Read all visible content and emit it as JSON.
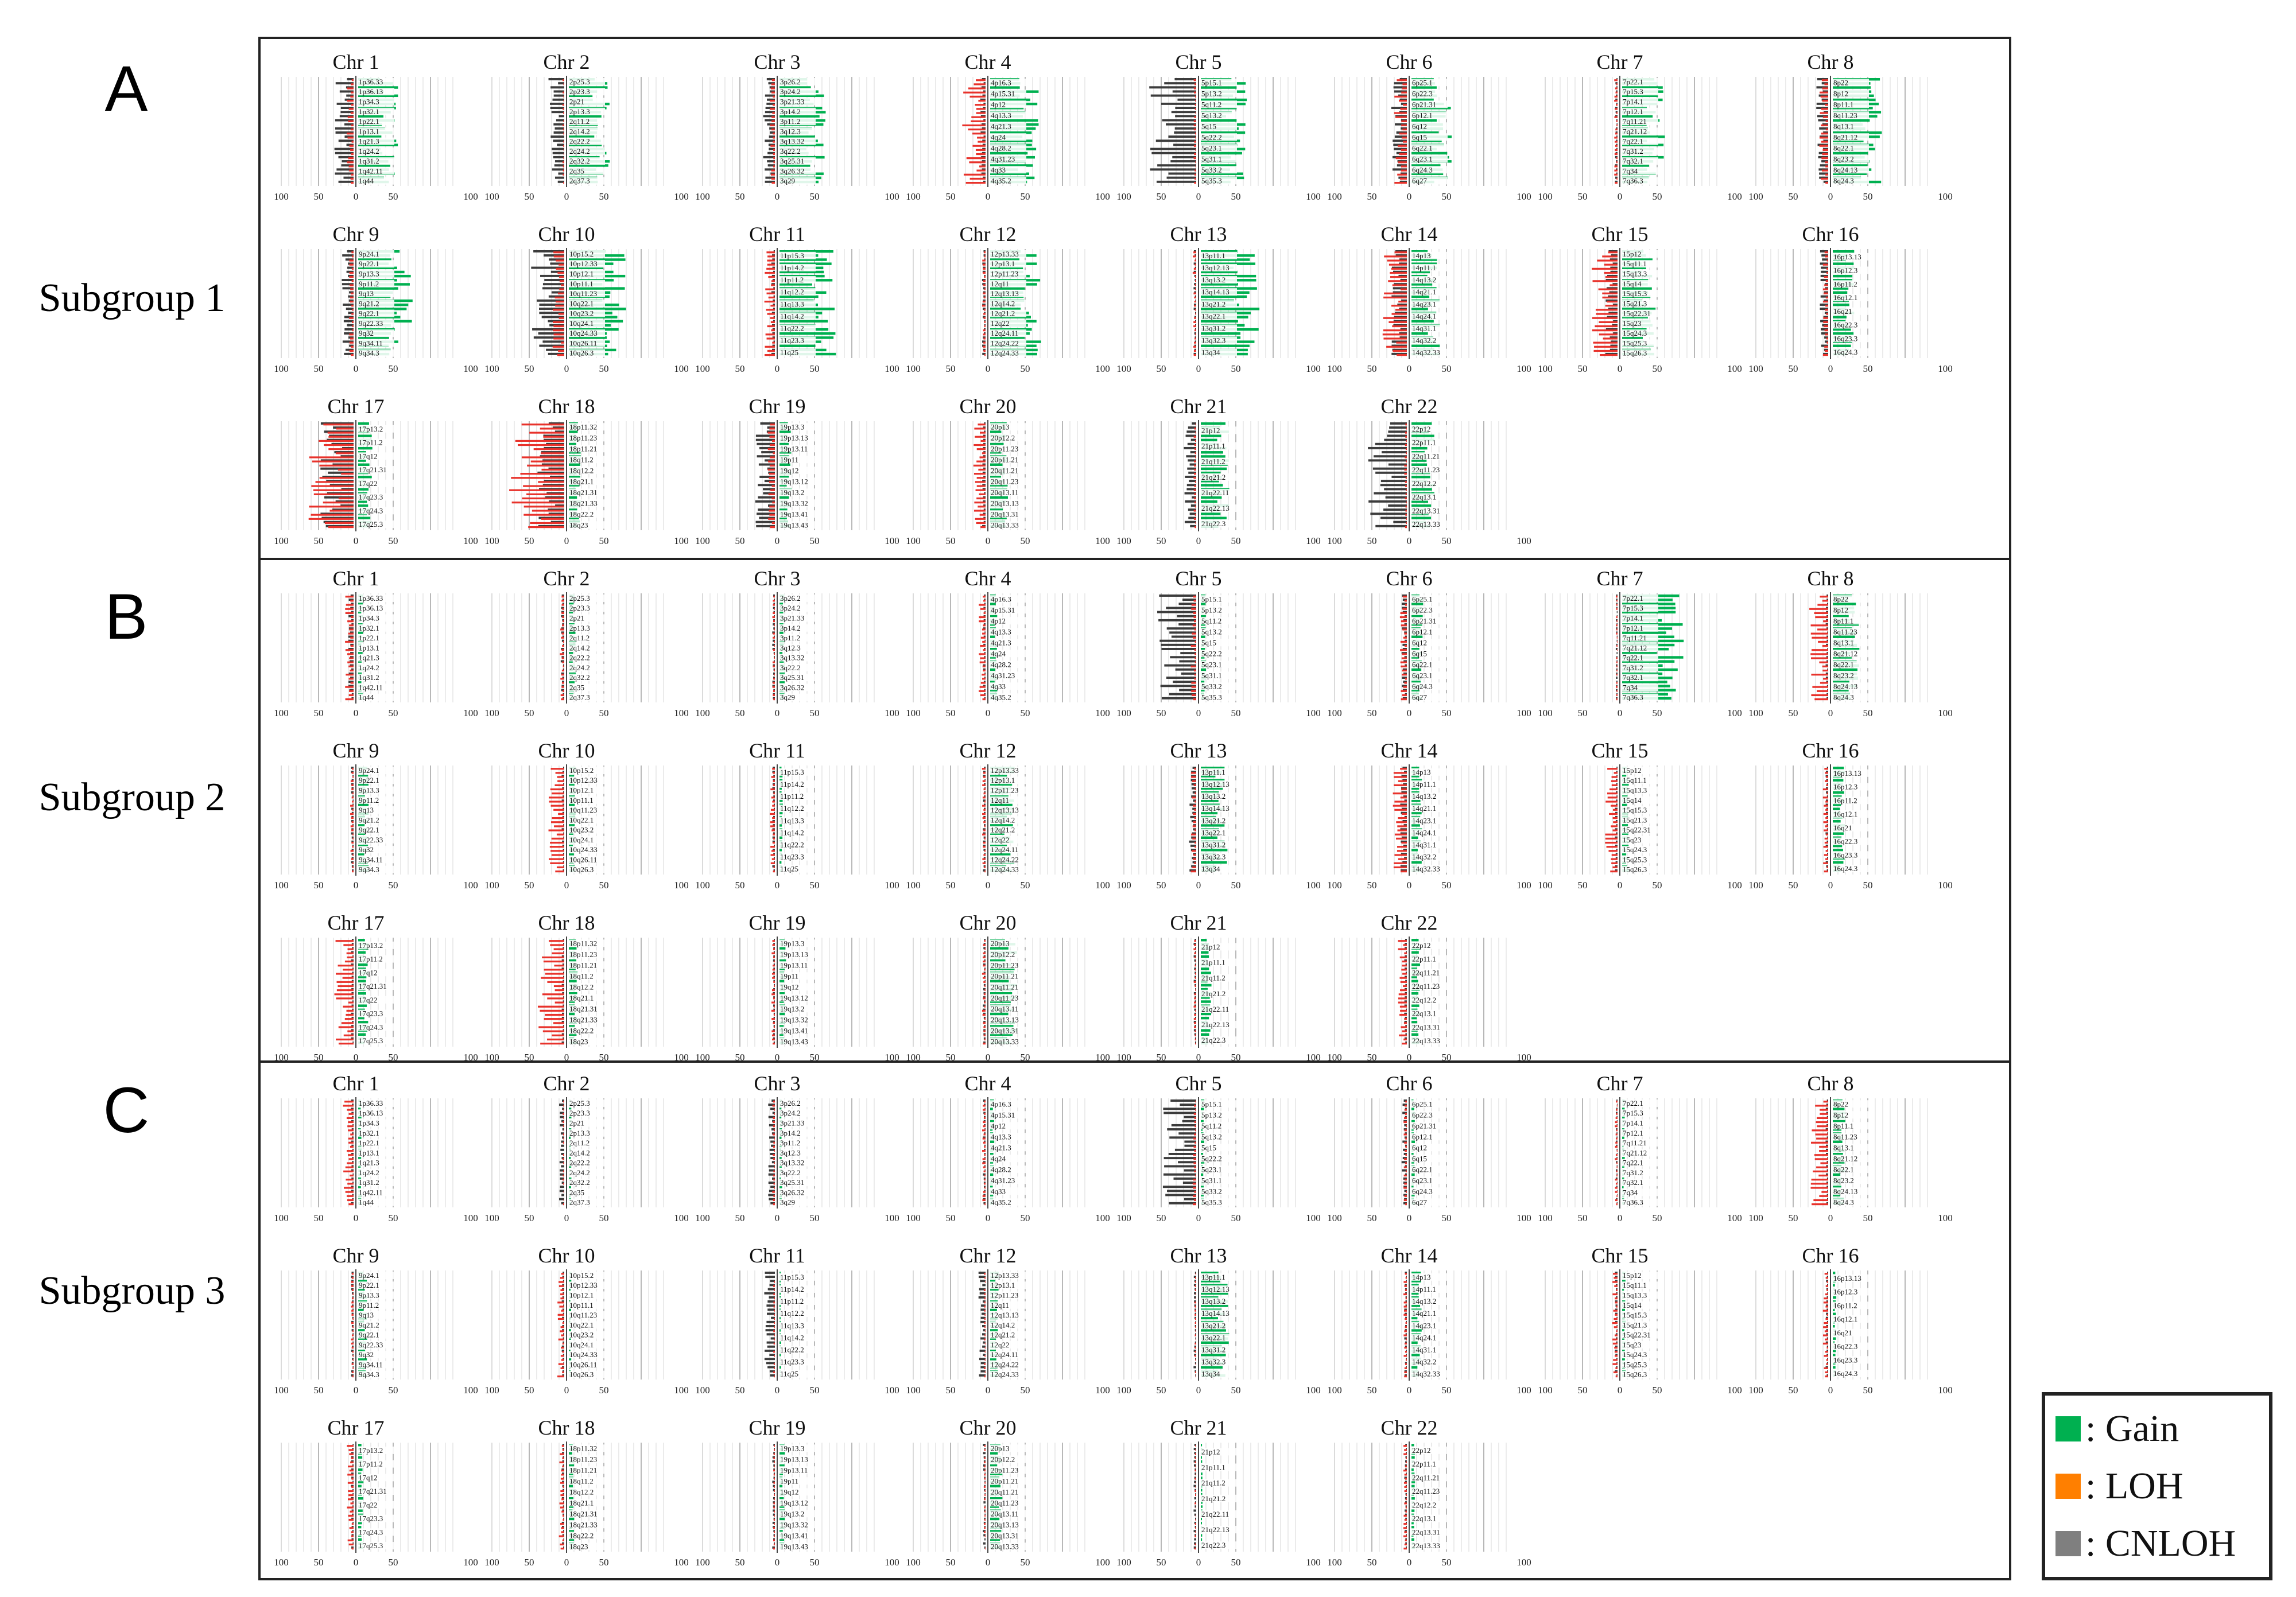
{
  "sections": [
    {
      "letter": "A",
      "group": "Subgroup 1"
    },
    {
      "letter": "B",
      "group": "Subgroup 2"
    },
    {
      "letter": "C",
      "group": "Subgroup 3"
    }
  ],
  "legend": [
    {
      "label": ": Gain",
      "color": "#00b050"
    },
    {
      "label": ": LOH",
      "color": "#ff7f00"
    },
    {
      "label": ": CNLOH",
      "color": "#7f7f7f"
    }
  ],
  "chart_data": {
    "type": "bar",
    "description_axis": "horizontal bars per chromosome band; left side = LOH/CNLOH frequency, right side = gain frequency",
    "x_ticks_left": [
      "100",
      "50",
      "0"
    ],
    "x_ticks_right": [
      "50",
      "100"
    ],
    "xlim": [
      -100,
      100
    ],
    "colors": {
      "gain": "#00b050",
      "loh": "#e8322b",
      "cnloh": "#3c3c3c"
    },
    "chromosomes": [
      {
        "name": "Chr 1",
        "bands": [
          "1p36.33",
          "1p36.13",
          "1p34.3",
          "1p32.1",
          "1p22.1",
          "1p13.1",
          "1q21.3",
          "1q24.2",
          "1q31.2",
          "1q42.11",
          "1q44"
        ]
      },
      {
        "name": "Chr 2",
        "bands": [
          "2p25.3",
          "2p23.3",
          "2p21",
          "2p13.3",
          "2q11.2",
          "2q14.2",
          "2q22.2",
          "2q24.2",
          "2q32.2",
          "2q35",
          "2q37.3"
        ]
      },
      {
        "name": "Chr 3",
        "bands": [
          "3p26.2",
          "3p24.2",
          "3p21.33",
          "3p14.2",
          "3p11.2",
          "3q12.3",
          "3q13.32",
          "3q22.2",
          "3q25.31",
          "3q26.32",
          "3q29"
        ]
      },
      {
        "name": "Chr 4",
        "bands": [
          "4p16.3",
          "4p15.31",
          "4p12",
          "4q13.3",
          "4q21.3",
          "4q24",
          "4q28.2",
          "4q31.23",
          "4q33",
          "4q35.2"
        ]
      },
      {
        "name": "Chr 5",
        "bands": [
          "5p15.1",
          "5p13.2",
          "5q11.2",
          "5q13.2",
          "5q15",
          "5q22.2",
          "5q23.1",
          "5q31.1",
          "5q33.2",
          "5q35.3"
        ]
      },
      {
        "name": "Chr 6",
        "bands": [
          "6p25.1",
          "6p22.3",
          "6p21.31",
          "6p12.1",
          "6q12",
          "6q15",
          "6q22.1",
          "6q23.1",
          "6q24.3",
          "6q27"
        ]
      },
      {
        "name": "Chr 7",
        "bands": [
          "7p22.1",
          "7p15.3",
          "7p14.1",
          "7p12.1",
          "7q11.21",
          "7q21.12",
          "7q22.1",
          "7q31.2",
          "7q32.1",
          "7q34",
          "7q36.3"
        ]
      },
      {
        "name": "Chr 8",
        "bands": [
          "8p22",
          "8p12",
          "8p11.1",
          "8q11.23",
          "8q13.1",
          "8q21.12",
          "8q22.1",
          "8q23.2",
          "8q24.13",
          "8q24.3"
        ]
      },
      {
        "name": "Chr 9",
        "bands": [
          "9p24.1",
          "9p22.1",
          "9p13.3",
          "9p11.2",
          "9q13",
          "9q21.2",
          "9q22.1",
          "9q22.33",
          "9q32",
          "9q34.11",
          "9q34.3"
        ]
      },
      {
        "name": "Chr 10",
        "bands": [
          "10p15.2",
          "10p12.33",
          "10p12.1",
          "10p11.1",
          "10q11.23",
          "10q22.1",
          "10q23.2",
          "10q24.1",
          "10q24.33",
          "10q26.11",
          "10q26.3"
        ]
      },
      {
        "name": "Chr 11",
        "bands": [
          "11p15.3",
          "11p14.2",
          "11p11.2",
          "11q12.2",
          "11q13.3",
          "11q14.2",
          "11q22.2",
          "11q23.3",
          "11q25"
        ]
      },
      {
        "name": "Chr 12",
        "bands": [
          "12p13.33",
          "12p13.1",
          "12p11.23",
          "12q11",
          "12q13.13",
          "12q14.2",
          "12q21.2",
          "12q22",
          "12q24.11",
          "12q24.22",
          "12q24.33"
        ]
      },
      {
        "name": "Chr 13",
        "bands": [
          "13p11.1",
          "13q12.13",
          "13q13.2",
          "13q14.13",
          "13q21.2",
          "13q22.1",
          "13q31.2",
          "13q32.3",
          "13q34"
        ]
      },
      {
        "name": "Chr 14",
        "bands": [
          "14p13",
          "14p11.1",
          "14q13.2",
          "14q21.1",
          "14q23.1",
          "14q24.1",
          "14q31.1",
          "14q32.2",
          "14q32.33"
        ]
      },
      {
        "name": "Chr 15",
        "bands": [
          "15p12",
          "15q11.1",
          "15q13.3",
          "15q14",
          "15q15.3",
          "15q21.3",
          "15q22.31",
          "15q23",
          "15q24.3",
          "15q25.3",
          "15q26.3"
        ]
      },
      {
        "name": "Chr 16",
        "bands": [
          "16p13.13",
          "16p12.3",
          "16p11.2",
          "16q12.1",
          "16q21",
          "16q22.3",
          "16q23.3",
          "16q24.3"
        ]
      },
      {
        "name": "Chr 17",
        "bands": [
          "17p13.2",
          "17p11.2",
          "17q12",
          "17q21.31",
          "17q22",
          "17q23.3",
          "17q24.3",
          "17q25.3"
        ]
      },
      {
        "name": "Chr 18",
        "bands": [
          "18p11.32",
          "18p11.23",
          "18p11.21",
          "18q11.2",
          "18q12.2",
          "18q21.1",
          "18q21.31",
          "18q21.33",
          "18q22.2",
          "18q23"
        ]
      },
      {
        "name": "Chr 19",
        "bands": [
          "19p13.3",
          "19p13.13",
          "19p13.11",
          "19p11",
          "19q12",
          "19q13.12",
          "19q13.2",
          "19q13.32",
          "19q13.41",
          "19q13.43"
        ]
      },
      {
        "name": "Chr 20",
        "bands": [
          "20p13",
          "20p12.2",
          "20p11.23",
          "20p11.21",
          "20q11.21",
          "20q11.23",
          "20q13.11",
          "20q13.13",
          "20q13.31",
          "20q13.33"
        ]
      },
      {
        "name": "Chr 21",
        "bands": [
          "21p12",
          "21p11.1",
          "21q11.2",
          "21q21.2",
          "21q22.11",
          "21q22.13",
          "21q22.3"
        ]
      },
      {
        "name": "Chr 22",
        "bands": [
          "22p12",
          "22p11.1",
          "22q11.21",
          "22q11.23",
          "22q12.2",
          "22q13.1",
          "22q13.31",
          "22q13.33"
        ]
      }
    ],
    "panels": [
      {
        "label": "A",
        "group": "Subgroup 1",
        "series": [
          {
            "gain": 45,
            "loh": 8,
            "cnloh": 22
          },
          {
            "gain": 48,
            "loh": 2,
            "cnloh": 18
          },
          {
            "gain": 52,
            "loh": 6,
            "cnloh": 14
          },
          {
            "gain": 55,
            "loh": 28,
            "cnloh": 6
          },
          {
            "gain": 52,
            "loh": 3,
            "cnloh": 55
          },
          {
            "gain": 45,
            "loh": 15,
            "cnloh": 18
          },
          {
            "gain": 48,
            "loh": 4,
            "cnloh": 3
          },
          {
            "gain": 55,
            "loh": 10,
            "cnloh": 14
          },
          {
            "gain": 62,
            "loh": 6,
            "cnloh": 14
          },
          {
            "gain": 66,
            "loh": 14,
            "cnloh": 38
          },
          {
            "gain": 66,
            "loh": 12,
            "cnloh": 4
          },
          {
            "gain": 60,
            "loh": 4,
            "cnloh": 4
          },
          {
            "gain": 66,
            "loh": 4,
            "cnloh": 3
          },
          {
            "gain": 32,
            "loh": 28,
            "cnloh": 18
          },
          {
            "gain": 38,
            "loh": 30,
            "cnloh": 14
          },
          {
            "gain": 26,
            "loh": 6,
            "cnloh": 10
          },
          {
            "gain": 16,
            "loh": 52,
            "cnloh": 38
          },
          {
            "gain": 14,
            "loh": 62,
            "cnloh": 30
          },
          {
            "gain": 14,
            "loh": 8,
            "cnloh": 22
          },
          {
            "gain": 20,
            "loh": 14,
            "cnloh": 4
          },
          {
            "gain": 32,
            "loh": 3,
            "cnloh": 14
          },
          {
            "gain": 26,
            "loh": 3,
            "cnloh": 44
          }
        ]
      },
      {
        "label": "B",
        "group": "Subgroup 2",
        "series": [
          {
            "gain": 6,
            "loh": 10,
            "cnloh": 6
          },
          {
            "gain": 8,
            "loh": 5,
            "cnloh": 4
          },
          {
            "gain": 6,
            "loh": 3,
            "cnloh": 3
          },
          {
            "gain": 8,
            "loh": 8,
            "cnloh": 3
          },
          {
            "gain": 6,
            "loh": 6,
            "cnloh": 44
          },
          {
            "gain": 14,
            "loh": 8,
            "cnloh": 6
          },
          {
            "gain": 70,
            "loh": 2,
            "cnloh": 2
          },
          {
            "gain": 30,
            "loh": 22,
            "cnloh": 3
          },
          {
            "gain": 12,
            "loh": 4,
            "cnloh": 3
          },
          {
            "gain": 8,
            "loh": 18,
            "cnloh": 3
          },
          {
            "gain": 4,
            "loh": 6,
            "cnloh": 3
          },
          {
            "gain": 28,
            "loh": 4,
            "cnloh": 3
          },
          {
            "gain": 30,
            "loh": 6,
            "cnloh": 8
          },
          {
            "gain": 12,
            "loh": 16,
            "cnloh": 8
          },
          {
            "gain": 8,
            "loh": 14,
            "cnloh": 3
          },
          {
            "gain": 14,
            "loh": 6,
            "cnloh": 3
          },
          {
            "gain": 12,
            "loh": 22,
            "cnloh": 3
          },
          {
            "gain": 10,
            "loh": 32,
            "cnloh": 3
          },
          {
            "gain": 8,
            "loh": 4,
            "cnloh": 3
          },
          {
            "gain": 30,
            "loh": 4,
            "cnloh": 3
          },
          {
            "gain": 12,
            "loh": 3,
            "cnloh": 3
          },
          {
            "gain": 10,
            "loh": 10,
            "cnloh": 3
          }
        ]
      },
      {
        "label": "C",
        "group": "Subgroup 3",
        "series": [
          {
            "gain": 4,
            "loh": 12,
            "cnloh": 3
          },
          {
            "gain": 3,
            "loh": 2,
            "cnloh": 6
          },
          {
            "gain": 3,
            "loh": 3,
            "cnloh": 8
          },
          {
            "gain": 5,
            "loh": 4,
            "cnloh": 3
          },
          {
            "gain": 4,
            "loh": 4,
            "cnloh": 38
          },
          {
            "gain": 4,
            "loh": 4,
            "cnloh": 6
          },
          {
            "gain": 3,
            "loh": 3,
            "cnloh": 2
          },
          {
            "gain": 14,
            "loh": 20,
            "cnloh": 3
          },
          {
            "gain": 10,
            "loh": 3,
            "cnloh": 3
          },
          {
            "gain": 3,
            "loh": 8,
            "cnloh": 3
          },
          {
            "gain": 2,
            "loh": 2,
            "cnloh": 12
          },
          {
            "gain": 10,
            "loh": 2,
            "cnloh": 8
          },
          {
            "gain": 32,
            "loh": 2,
            "cnloh": 3
          },
          {
            "gain": 12,
            "loh": 4,
            "cnloh": 3
          },
          {
            "gain": 4,
            "loh": 6,
            "cnloh": 3
          },
          {
            "gain": 4,
            "loh": 6,
            "cnloh": 3
          },
          {
            "gain": 6,
            "loh": 8,
            "cnloh": 3
          },
          {
            "gain": 6,
            "loh": 6,
            "cnloh": 3
          },
          {
            "gain": 6,
            "loh": 2,
            "cnloh": 3
          },
          {
            "gain": 14,
            "loh": 2,
            "cnloh": 3
          },
          {
            "gain": 2,
            "loh": 2,
            "cnloh": 3
          },
          {
            "gain": 4,
            "loh": 4,
            "cnloh": 3
          }
        ]
      }
    ]
  }
}
